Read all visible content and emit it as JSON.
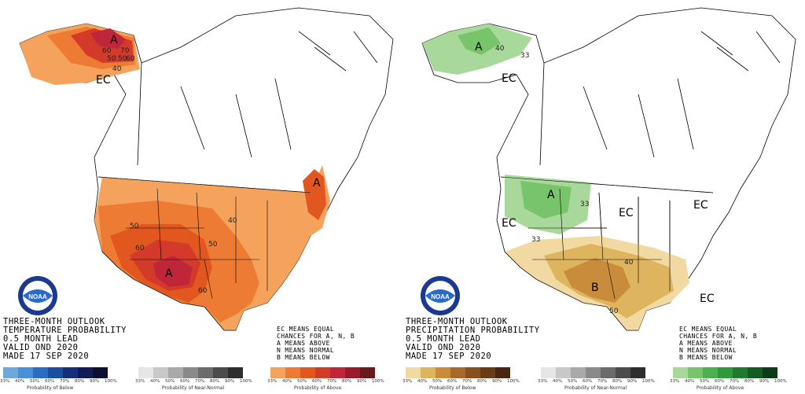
{
  "temperature": {
    "title_lines": [
      "THREE-MONTH OUTLOOK",
      "TEMPERATURE PROBABILITY",
      "0.5 MONTH LEAD",
      "VALID OND 2020",
      "MADE 17 SEP 2020"
    ],
    "legend_lines": [
      "EC MEANS EQUAL",
      "CHANCES FOR A, N, B",
      "A MEANS ABOVE",
      "N MEANS NORMAL",
      "B MEANS BELOW"
    ],
    "map_labels": {
      "a_alaska": "A",
      "a_northeast": "A",
      "a_southwest": "A",
      "ec_alaska": "EC",
      "c_60": "60",
      "c_70": "70",
      "c_50": "50",
      "c_50b": "50",
      "c_60b": "60",
      "c_40": "40",
      "c_50us": "50",
      "c_40us": "40",
      "c_50us2": "50",
      "c_60us": "60",
      "c_60us2": "60"
    },
    "scales": [
      {
        "title": "Probability of Below",
        "colors": [
          "#6fa8dc",
          "#4a90d9",
          "#2b6cc4",
          "#1a4fa0",
          "#162f7a",
          "#101c55",
          "#0a0f33"
        ],
        "ticks": [
          "33%",
          "40%",
          "50%",
          "60%",
          "70%",
          "80%",
          "90%",
          "100%"
        ]
      },
      {
        "title": "Probability of Near-Normal",
        "colors": [
          "#e6e6e6",
          "#c8c8c8",
          "#a9a9a9",
          "#8a8a8a",
          "#6b6b6b",
          "#4c4c4c",
          "#2e2e2e"
        ],
        "ticks": [
          "33%",
          "40%",
          "50%",
          "60%",
          "70%",
          "80%",
          "90%",
          "100%"
        ]
      },
      {
        "title": "Probability of Above",
        "colors": [
          "#f5a25d",
          "#ee7b33",
          "#e2571f",
          "#d43a2a",
          "#c0263a",
          "#9a1a2b",
          "#6a1a1a"
        ],
        "ticks": [
          "33%",
          "40%",
          "50%",
          "60%",
          "70%",
          "80%",
          "90%",
          "100%"
        ]
      }
    ]
  },
  "precipitation": {
    "title_lines": [
      "THREE-MONTH OUTLOOK",
      "PRECIPITATION PROBABILITY",
      "0.5 MONTH LEAD",
      "VALID OND 2020",
      "MADE 17 SEP 2020"
    ],
    "legend_lines": [
      "EC MEANS EQUAL",
      "CHANCES FOR A, N, B",
      "A MEANS ABOVE",
      "N MEANS NORMAL",
      "B MEANS BELOW"
    ],
    "map_labels": {
      "a_alaska": "A",
      "a_northwest": "A",
      "b_southwest": "B",
      "ec_alaska": "EC",
      "ec_west": "EC",
      "ec_central": "EC",
      "ec_northeast": "EC",
      "ec_southeast": "EC",
      "c_40": "40",
      "c_33a": "33",
      "c_33b": "33",
      "c_33c": "33",
      "c_40b": "40",
      "c_50": "50"
    },
    "scales": [
      {
        "title": "Probability of Below",
        "colors": [
          "#f1d9a1",
          "#dfb45e",
          "#c98c3a",
          "#a86a2a",
          "#8a4f1e",
          "#6b3a16",
          "#4a2510"
        ],
        "ticks": [
          "33%",
          "40%",
          "50%",
          "60%",
          "70%",
          "80%",
          "90%",
          "100%"
        ]
      },
      {
        "title": "Probability of Near-Normal",
        "colors": [
          "#e6e6e6",
          "#c8c8c8",
          "#a9a9a9",
          "#8a8a8a",
          "#6b6b6b",
          "#4c4c4c",
          "#2e2e2e"
        ],
        "ticks": [
          "33%",
          "40%",
          "50%",
          "60%",
          "70%",
          "80%",
          "90%",
          "100%"
        ]
      },
      {
        "title": "Probability of Above",
        "colors": [
          "#a8d99a",
          "#78c46a",
          "#4caf50",
          "#2e9a3c",
          "#1f7a2e",
          "#155c22",
          "#0c3d16"
        ],
        "ticks": [
          "33%",
          "40%",
          "50%",
          "60%",
          "70%",
          "80%",
          "90%",
          "100%"
        ]
      }
    ]
  },
  "noaa_logo_text": "NOAA"
}
